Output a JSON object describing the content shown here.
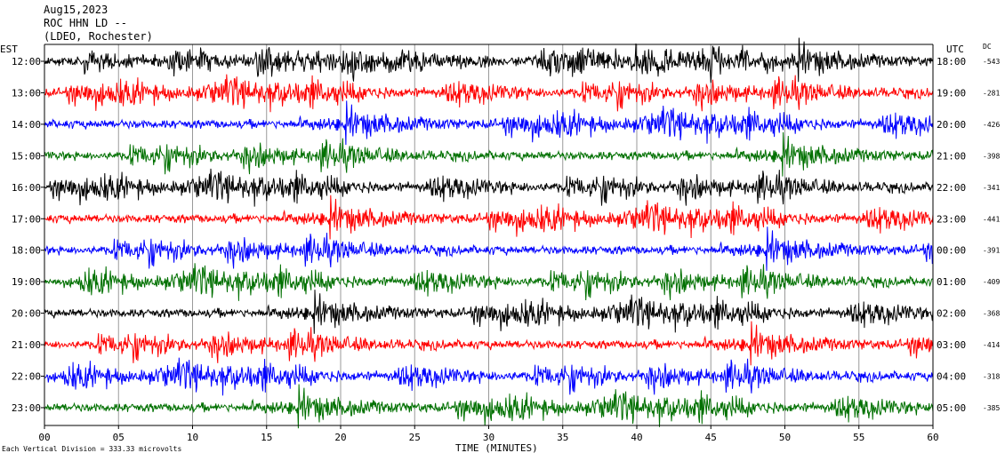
{
  "header": {
    "date": "Aug15,2023",
    "station": "ROC HHN LD --",
    "location": "(LDEO, Rochester)"
  },
  "footer": {
    "scale_note": "Each Vertical Division =  333.33 microvolts"
  },
  "chart_data": {
    "type": "line",
    "subtype": "helicorder",
    "xlabel": "TIME (MINUTES)",
    "xlim": [
      0,
      60
    ],
    "x_ticks": [
      "00",
      "05",
      "10",
      "15",
      "20",
      "25",
      "30",
      "35",
      "40",
      "45",
      "50",
      "55",
      "60"
    ],
    "left_axis_title": "EST",
    "right_axis_title": "UTC",
    "dc_title": "DC",
    "grid": "vertical lines every 5 minutes",
    "trace_colors": [
      "#000000",
      "#ff0000",
      "#0000ff",
      "#007000"
    ],
    "rows": [
      {
        "est": "12:00",
        "utc": "18:00",
        "dc": "-543",
        "color": "#000000"
      },
      {
        "est": "13:00",
        "utc": "19:00",
        "dc": "-281",
        "color": "#ff0000"
      },
      {
        "est": "14:00",
        "utc": "20:00",
        "dc": "-426",
        "color": "#0000ff"
      },
      {
        "est": "15:00",
        "utc": "21:00",
        "dc": "-398",
        "color": "#007000"
      },
      {
        "est": "16:00",
        "utc": "22:00",
        "dc": "-341",
        "color": "#000000"
      },
      {
        "est": "17:00",
        "utc": "23:00",
        "dc": "-441",
        "color": "#ff0000"
      },
      {
        "est": "18:00",
        "utc": "00:00",
        "dc": "-391",
        "color": "#0000ff"
      },
      {
        "est": "19:00",
        "utc": "01:00",
        "dc": "-409",
        "color": "#007000"
      },
      {
        "est": "20:00",
        "utc": "02:00",
        "dc": "-368",
        "color": "#000000"
      },
      {
        "est": "21:00",
        "utc": "03:00",
        "dc": "-414",
        "color": "#ff0000"
      },
      {
        "est": "22:00",
        "utc": "04:00",
        "dc": "-318",
        "color": "#0000ff"
      },
      {
        "est": "23:00",
        "utc": "05:00",
        "dc": "-385",
        "color": "#007000"
      }
    ]
  }
}
